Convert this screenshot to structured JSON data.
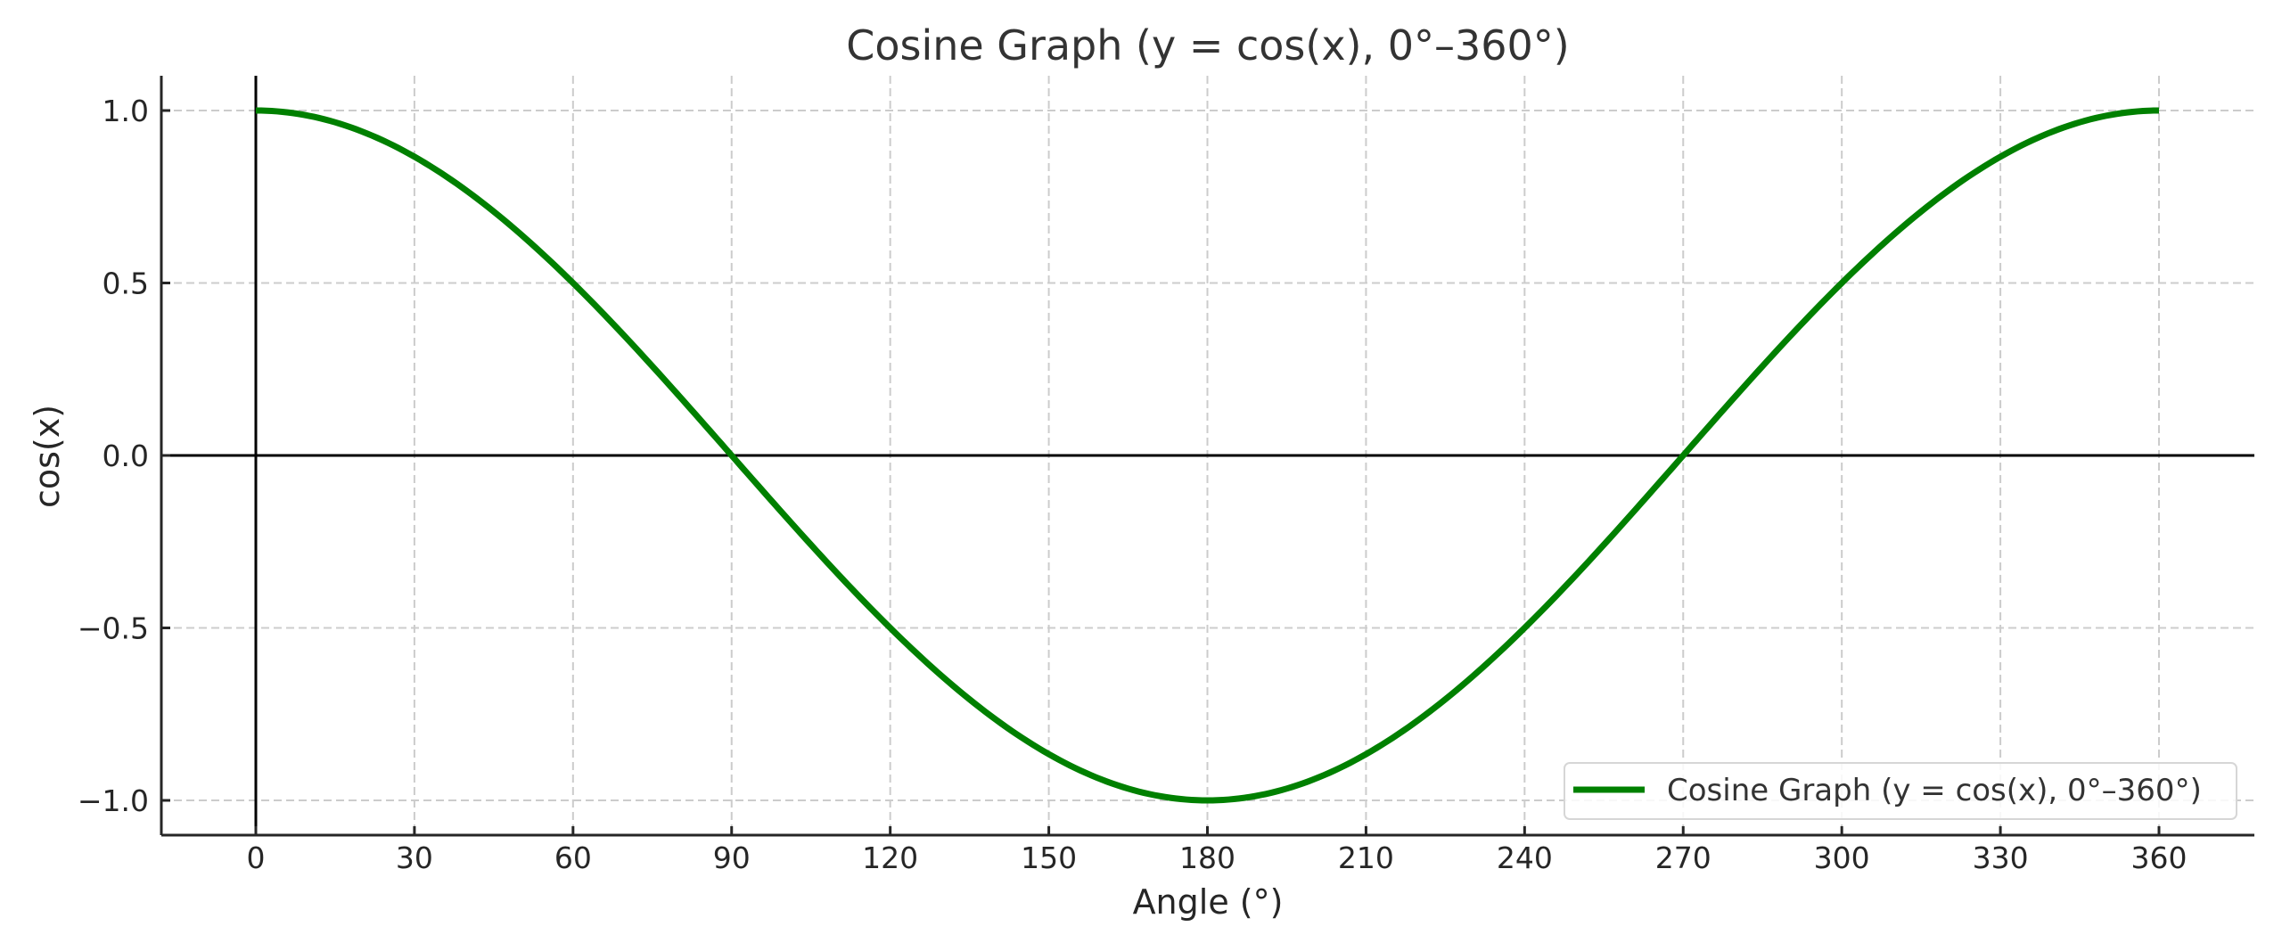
{
  "chart_data": {
    "type": "line",
    "title": "Cosine Graph (y = cos(x), 0°–360°)",
    "xlabel": "Angle (°)",
    "ylabel": "cos(x)",
    "xlim": [
      -12,
      384
    ],
    "ylim": [
      -1.1,
      1.1
    ],
    "x_ticks": [
      0,
      30,
      60,
      90,
      120,
      150,
      180,
      210,
      240,
      270,
      300,
      330,
      360
    ],
    "x_tick_labels": [
      "0",
      "30",
      "60",
      "90",
      "120",
      "150",
      "180",
      "210",
      "240",
      "270",
      "300",
      "330",
      "360"
    ],
    "y_ticks": [
      1.0,
      0.5,
      0.0,
      -0.5,
      -1.0
    ],
    "y_tick_labels": [
      "1.0",
      "0.5",
      "0.0",
      "−0.5",
      "−1.0"
    ],
    "grid": true,
    "legend_position": "lower right",
    "reference_lines": {
      "x": 0,
      "y": 0
    },
    "series": [
      {
        "name": "Cosine Graph (y = cos(x), 0°–360°)",
        "color": "#008000",
        "x": [
          0,
          30,
          60,
          90,
          120,
          150,
          180,
          210,
          240,
          270,
          300,
          330,
          360
        ],
        "values": [
          1.0,
          0.866,
          0.5,
          0.0,
          -0.5,
          -0.866,
          -1.0,
          -0.866,
          -0.5,
          0.0,
          0.5,
          0.866,
          1.0
        ]
      }
    ]
  },
  "legend": {
    "label": "Cosine Graph (y = cos(x), 0°–360°)"
  }
}
